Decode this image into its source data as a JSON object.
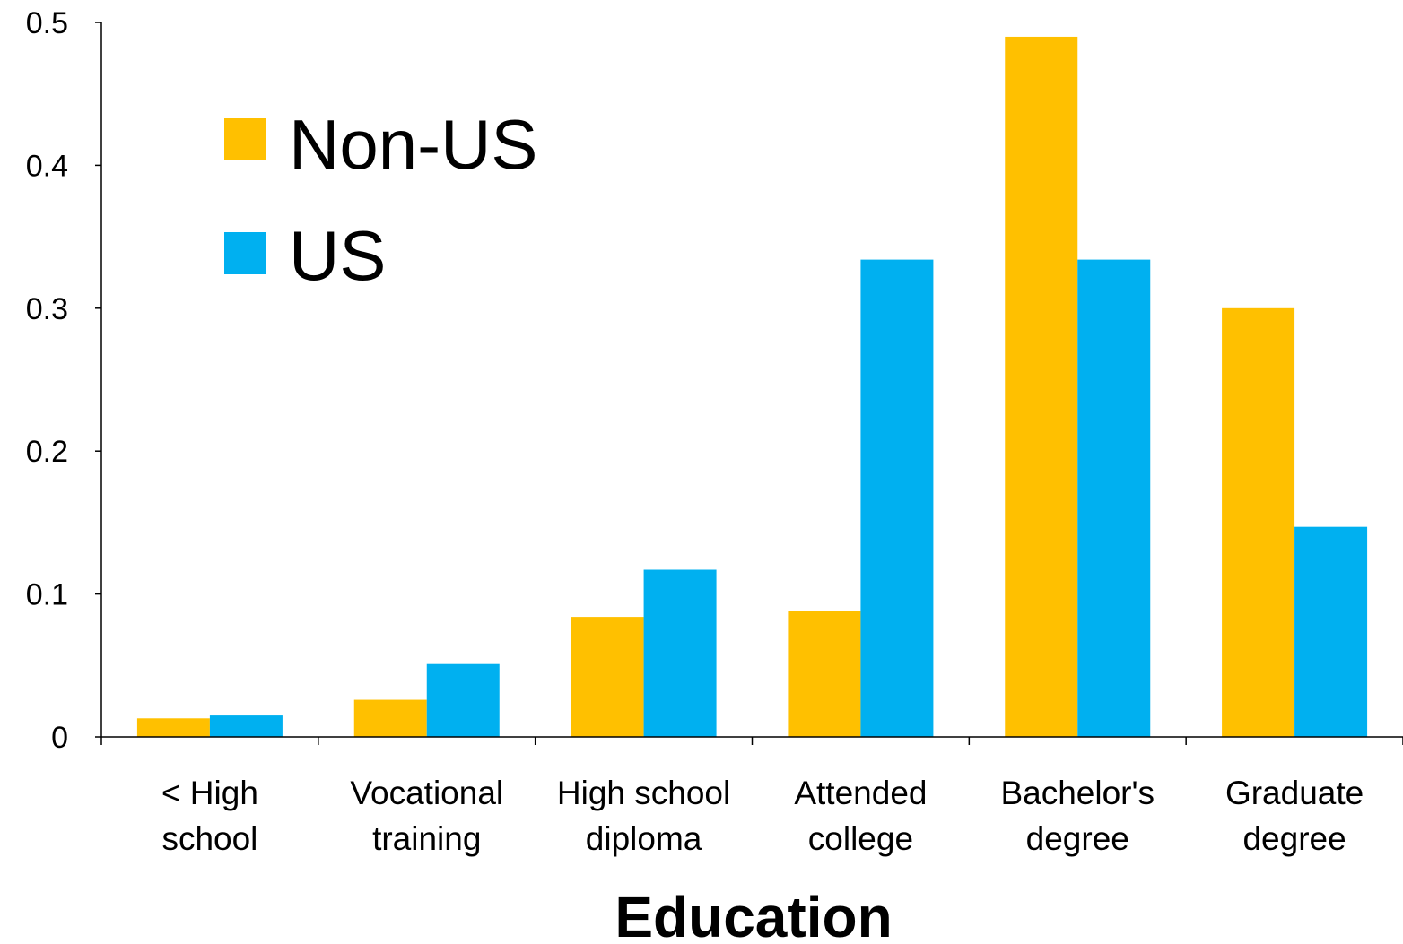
{
  "chart_data": {
    "type": "bar",
    "title": "",
    "xlabel": "Education",
    "ylabel": "",
    "ylim": [
      0,
      0.5
    ],
    "yticks": [
      0,
      0.1,
      0.2,
      0.3,
      0.4,
      0.5
    ],
    "ytick_labels": [
      "0",
      "0.1",
      "0.2",
      "0.3",
      "0.4",
      "0.5"
    ],
    "grid": false,
    "legend_position": "top-left",
    "categories": [
      [
        "< High",
        "school"
      ],
      [
        "Vocational",
        "training"
      ],
      [
        "High school",
        "diploma"
      ],
      [
        "Attended",
        "college"
      ],
      [
        "Bachelor's",
        "degree"
      ],
      [
        "Graduate",
        "degree"
      ]
    ],
    "series": [
      {
        "name": "Non-US",
        "color": "#FFC000",
        "values": [
          0.013,
          0.026,
          0.084,
          0.088,
          0.49,
          0.3
        ]
      },
      {
        "name": "US",
        "color": "#00B0F0",
        "values": [
          0.015,
          0.051,
          0.117,
          0.334,
          0.334,
          0.147
        ]
      }
    ]
  }
}
